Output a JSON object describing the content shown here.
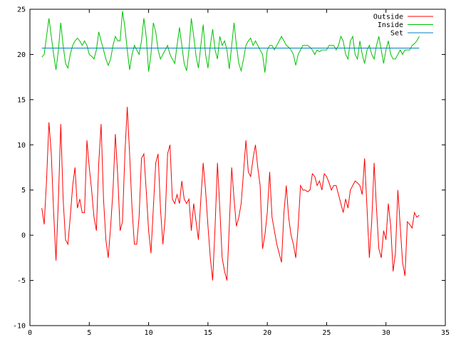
{
  "chart_data": {
    "type": "line",
    "title": "",
    "xlabel": "",
    "ylabel": "",
    "xlim": [
      0,
      35
    ],
    "ylim": [
      -10,
      25
    ],
    "xticks": [
      0,
      5,
      10,
      15,
      20,
      25,
      30,
      35
    ],
    "yticks": [
      -10,
      -5,
      0,
      5,
      10,
      15,
      20,
      25
    ],
    "grid": false,
    "legend_position": "top-right",
    "series": [
      {
        "name": "Outside",
        "color": "#ff0000",
        "points": [
          [
            1.0,
            3.0
          ],
          [
            1.2,
            1.2
          ],
          [
            1.4,
            6.0
          ],
          [
            1.6,
            12.5
          ],
          [
            1.8,
            9.0
          ],
          [
            2.0,
            2.5
          ],
          [
            2.2,
            -2.8
          ],
          [
            2.4,
            4.0
          ],
          [
            2.6,
            12.3
          ],
          [
            2.8,
            4.0
          ],
          [
            3.0,
            -0.5
          ],
          [
            3.2,
            -1.0
          ],
          [
            3.4,
            2.0
          ],
          [
            3.6,
            5.5
          ],
          [
            3.8,
            7.5
          ],
          [
            4.0,
            3.0
          ],
          [
            4.2,
            4.0
          ],
          [
            4.4,
            2.5
          ],
          [
            4.6,
            2.5
          ],
          [
            4.8,
            10.5
          ],
          [
            5.0,
            7.5
          ],
          [
            5.2,
            5.0
          ],
          [
            5.4,
            2.0
          ],
          [
            5.6,
            0.5
          ],
          [
            5.8,
            8.0
          ],
          [
            6.0,
            12.3
          ],
          [
            6.2,
            4.0
          ],
          [
            6.4,
            -0.5
          ],
          [
            6.6,
            -2.5
          ],
          [
            6.8,
            1.0
          ],
          [
            7.0,
            5.0
          ],
          [
            7.2,
            11.2
          ],
          [
            7.4,
            6.5
          ],
          [
            7.6,
            0.5
          ],
          [
            7.8,
            1.5
          ],
          [
            8.0,
            9.0
          ],
          [
            8.2,
            14.2
          ],
          [
            8.4,
            9.0
          ],
          [
            8.6,
            3.0
          ],
          [
            8.8,
            -1.0
          ],
          [
            9.0,
            -1.0
          ],
          [
            9.2,
            2.0
          ],
          [
            9.4,
            8.5
          ],
          [
            9.6,
            9.0
          ],
          [
            9.8,
            5.0
          ],
          [
            10.0,
            0.5
          ],
          [
            10.2,
            -2.0
          ],
          [
            10.4,
            3.0
          ],
          [
            10.6,
            8.0
          ],
          [
            10.8,
            9.0
          ],
          [
            11.0,
            3.0
          ],
          [
            11.2,
            -1.0
          ],
          [
            11.4,
            2.0
          ],
          [
            11.6,
            9.0
          ],
          [
            11.8,
            10.0
          ],
          [
            12.0,
            4.0
          ],
          [
            12.2,
            3.5
          ],
          [
            12.4,
            4.5
          ],
          [
            12.6,
            3.5
          ],
          [
            12.8,
            6.0
          ],
          [
            13.0,
            4.0
          ],
          [
            13.2,
            3.5
          ],
          [
            13.4,
            4.0
          ],
          [
            13.6,
            0.5
          ],
          [
            13.8,
            3.5
          ],
          [
            14.0,
            1.5
          ],
          [
            14.2,
            -0.5
          ],
          [
            14.4,
            4.0
          ],
          [
            14.6,
            8.0
          ],
          [
            14.8,
            5.0
          ],
          [
            15.0,
            1.0
          ],
          [
            15.2,
            -2.5
          ],
          [
            15.4,
            -5.0
          ],
          [
            15.6,
            1.0
          ],
          [
            15.8,
            8.0
          ],
          [
            16.0,
            3.0
          ],
          [
            16.2,
            -2.5
          ],
          [
            16.4,
            -4.0
          ],
          [
            16.6,
            -5.0
          ],
          [
            16.8,
            1.0
          ],
          [
            17.0,
            7.5
          ],
          [
            17.2,
            4.0
          ],
          [
            17.4,
            1.0
          ],
          [
            17.6,
            2.0
          ],
          [
            17.8,
            3.5
          ],
          [
            18.0,
            7.0
          ],
          [
            18.2,
            10.5
          ],
          [
            18.4,
            7.0
          ],
          [
            18.6,
            6.5
          ],
          [
            18.8,
            8.5
          ],
          [
            19.0,
            10.0
          ],
          [
            19.2,
            7.5
          ],
          [
            19.4,
            5.5
          ],
          [
            19.6,
            -1.5
          ],
          [
            19.8,
            0.0
          ],
          [
            20.0,
            2.5
          ],
          [
            20.2,
            7.0
          ],
          [
            20.4,
            2.0
          ],
          [
            20.6,
            0.5
          ],
          [
            20.8,
            -1.0
          ],
          [
            21.0,
            -2.0
          ],
          [
            21.2,
            -3.0
          ],
          [
            21.4,
            2.5
          ],
          [
            21.6,
            5.5
          ],
          [
            21.8,
            2.0
          ],
          [
            22.0,
            0.0
          ],
          [
            22.2,
            -1.0
          ],
          [
            22.4,
            -2.5
          ],
          [
            22.6,
            1.0
          ],
          [
            22.8,
            5.5
          ],
          [
            23.0,
            5.0
          ],
          [
            23.2,
            5.0
          ],
          [
            23.4,
            4.8
          ],
          [
            23.6,
            5.0
          ],
          [
            23.8,
            6.8
          ],
          [
            24.0,
            6.5
          ],
          [
            24.2,
            5.5
          ],
          [
            24.4,
            6.0
          ],
          [
            24.6,
            5.0
          ],
          [
            24.8,
            6.8
          ],
          [
            25.0,
            6.5
          ],
          [
            25.2,
            5.8
          ],
          [
            25.4,
            5.0
          ],
          [
            25.6,
            5.5
          ],
          [
            25.8,
            5.5
          ],
          [
            26.0,
            4.5
          ],
          [
            26.2,
            3.5
          ],
          [
            26.4,
            2.5
          ],
          [
            26.6,
            4.0
          ],
          [
            26.8,
            3.0
          ],
          [
            27.0,
            5.0
          ],
          [
            27.2,
            5.5
          ],
          [
            27.4,
            6.0
          ],
          [
            27.6,
            5.8
          ],
          [
            27.8,
            5.5
          ],
          [
            28.0,
            4.5
          ],
          [
            28.2,
            8.5
          ],
          [
            28.4,
            3.0
          ],
          [
            28.6,
            -2.5
          ],
          [
            28.8,
            1.5
          ],
          [
            29.0,
            8.0
          ],
          [
            29.2,
            3.0
          ],
          [
            29.4,
            -1.5
          ],
          [
            29.6,
            -2.5
          ],
          [
            29.8,
            0.5
          ],
          [
            30.0,
            -0.5
          ],
          [
            30.2,
            3.5
          ],
          [
            30.4,
            1.0
          ],
          [
            30.6,
            -4.0
          ],
          [
            30.8,
            -2.0
          ],
          [
            31.0,
            5.0
          ],
          [
            31.2,
            1.0
          ],
          [
            31.4,
            -3.0
          ],
          [
            31.6,
            -4.5
          ],
          [
            31.8,
            1.5
          ],
          [
            32.0,
            1.2
          ],
          [
            32.2,
            0.8
          ],
          [
            32.4,
            2.5
          ],
          [
            32.6,
            2.0
          ],
          [
            32.8,
            2.2
          ]
        ]
      },
      {
        "name": "Inside",
        "color": "#00c000",
        "points": [
          [
            1.0,
            19.7
          ],
          [
            1.2,
            20.0
          ],
          [
            1.4,
            22.0
          ],
          [
            1.6,
            24.0
          ],
          [
            1.8,
            22.0
          ],
          [
            2.0,
            20.0
          ],
          [
            2.2,
            18.3
          ],
          [
            2.4,
            20.5
          ],
          [
            2.6,
            23.5
          ],
          [
            2.8,
            21.0
          ],
          [
            3.0,
            19.0
          ],
          [
            3.2,
            18.5
          ],
          [
            3.4,
            20.0
          ],
          [
            3.6,
            21.0
          ],
          [
            3.8,
            21.5
          ],
          [
            4.0,
            21.8
          ],
          [
            4.2,
            21.5
          ],
          [
            4.4,
            21.0
          ],
          [
            4.6,
            21.5
          ],
          [
            4.8,
            21.0
          ],
          [
            5.0,
            20.0
          ],
          [
            5.2,
            19.8
          ],
          [
            5.4,
            19.5
          ],
          [
            5.6,
            20.5
          ],
          [
            5.8,
            22.5
          ],
          [
            6.0,
            21.5
          ],
          [
            6.2,
            20.5
          ],
          [
            6.4,
            19.5
          ],
          [
            6.6,
            18.8
          ],
          [
            6.8,
            19.5
          ],
          [
            7.0,
            21.0
          ],
          [
            7.2,
            22.0
          ],
          [
            7.4,
            21.5
          ],
          [
            7.6,
            21.5
          ],
          [
            7.8,
            24.8
          ],
          [
            8.0,
            23.0
          ],
          [
            8.2,
            20.5
          ],
          [
            8.4,
            18.3
          ],
          [
            8.6,
            20.0
          ],
          [
            8.8,
            21.0
          ],
          [
            9.0,
            20.5
          ],
          [
            9.2,
            20.0
          ],
          [
            9.4,
            21.5
          ],
          [
            9.6,
            24.0
          ],
          [
            9.8,
            22.0
          ],
          [
            10.0,
            18.1
          ],
          [
            10.2,
            20.0
          ],
          [
            10.4,
            23.5
          ],
          [
            10.6,
            22.5
          ],
          [
            10.8,
            20.5
          ],
          [
            11.0,
            19.5
          ],
          [
            11.2,
            20.0
          ],
          [
            11.4,
            20.5
          ],
          [
            11.6,
            21.0
          ],
          [
            11.8,
            20.0
          ],
          [
            12.0,
            19.5
          ],
          [
            12.2,
            19.0
          ],
          [
            12.4,
            21.0
          ],
          [
            12.6,
            23.0
          ],
          [
            12.8,
            21.0
          ],
          [
            13.0,
            19.0
          ],
          [
            13.2,
            18.2
          ],
          [
            13.4,
            20.5
          ],
          [
            13.6,
            24.0
          ],
          [
            13.8,
            22.0
          ],
          [
            14.0,
            19.8
          ],
          [
            14.2,
            18.5
          ],
          [
            14.4,
            21.0
          ],
          [
            14.6,
            23.3
          ],
          [
            14.8,
            20.0
          ],
          [
            15.0,
            18.5
          ],
          [
            15.2,
            21.0
          ],
          [
            15.4,
            22.8
          ],
          [
            15.6,
            20.5
          ],
          [
            15.8,
            19.5
          ],
          [
            16.0,
            22.0
          ],
          [
            16.2,
            21.0
          ],
          [
            16.4,
            21.5
          ],
          [
            16.6,
            20.5
          ],
          [
            16.8,
            18.4
          ],
          [
            17.0,
            21.0
          ],
          [
            17.2,
            23.5
          ],
          [
            17.4,
            21.0
          ],
          [
            17.6,
            19.0
          ],
          [
            17.8,
            18.2
          ],
          [
            18.0,
            19.5
          ],
          [
            18.2,
            21.0
          ],
          [
            18.4,
            21.5
          ],
          [
            18.6,
            21.8
          ],
          [
            18.8,
            21.0
          ],
          [
            19.0,
            21.5
          ],
          [
            19.2,
            21.0
          ],
          [
            19.4,
            20.5
          ],
          [
            19.6,
            20.0
          ],
          [
            19.8,
            18.0
          ],
          [
            20.0,
            20.5
          ],
          [
            20.2,
            21.0
          ],
          [
            20.4,
            21.0
          ],
          [
            20.6,
            20.5
          ],
          [
            20.8,
            21.0
          ],
          [
            21.0,
            21.5
          ],
          [
            21.2,
            22.0
          ],
          [
            21.4,
            21.5
          ],
          [
            21.6,
            21.0
          ],
          [
            21.8,
            20.8
          ],
          [
            22.0,
            20.5
          ],
          [
            22.2,
            20.0
          ],
          [
            22.4,
            18.8
          ],
          [
            22.6,
            20.0
          ],
          [
            22.8,
            20.5
          ],
          [
            23.0,
            21.0
          ],
          [
            23.2,
            21.0
          ],
          [
            23.4,
            21.0
          ],
          [
            23.6,
            20.8
          ],
          [
            23.8,
            20.5
          ],
          [
            24.0,
            20.0
          ],
          [
            24.2,
            20.5
          ],
          [
            24.4,
            20.3
          ],
          [
            24.6,
            20.5
          ],
          [
            24.8,
            20.5
          ],
          [
            25.0,
            20.5
          ],
          [
            25.2,
            21.0
          ],
          [
            25.4,
            21.0
          ],
          [
            25.6,
            21.0
          ],
          [
            25.8,
            20.5
          ],
          [
            26.0,
            21.0
          ],
          [
            26.2,
            22.0
          ],
          [
            26.4,
            21.5
          ],
          [
            26.6,
            20.0
          ],
          [
            26.8,
            19.5
          ],
          [
            27.0,
            21.5
          ],
          [
            27.2,
            22.0
          ],
          [
            27.4,
            20.0
          ],
          [
            27.6,
            19.5
          ],
          [
            27.8,
            21.5
          ],
          [
            28.0,
            20.0
          ],
          [
            28.2,
            19.0
          ],
          [
            28.4,
            20.5
          ],
          [
            28.6,
            21.0
          ],
          [
            28.8,
            20.0
          ],
          [
            29.0,
            19.5
          ],
          [
            29.2,
            21.0
          ],
          [
            29.4,
            22.0
          ],
          [
            29.6,
            20.5
          ],
          [
            29.8,
            19.0
          ],
          [
            30.0,
            20.5
          ],
          [
            30.2,
            21.5
          ],
          [
            30.4,
            20.0
          ],
          [
            30.6,
            19.5
          ],
          [
            30.8,
            19.5
          ],
          [
            31.0,
            20.0
          ],
          [
            31.2,
            20.5
          ],
          [
            31.4,
            20.0
          ],
          [
            31.6,
            20.5
          ],
          [
            31.8,
            20.5
          ],
          [
            32.0,
            20.5
          ],
          [
            32.2,
            21.0
          ],
          [
            32.4,
            21.2
          ],
          [
            32.6,
            21.5
          ],
          [
            32.8,
            22.0
          ]
        ]
      },
      {
        "name": "Set",
        "color": "#0080c0",
        "points": [
          [
            1.0,
            20.7
          ],
          [
            32.8,
            20.7
          ]
        ]
      }
    ]
  }
}
